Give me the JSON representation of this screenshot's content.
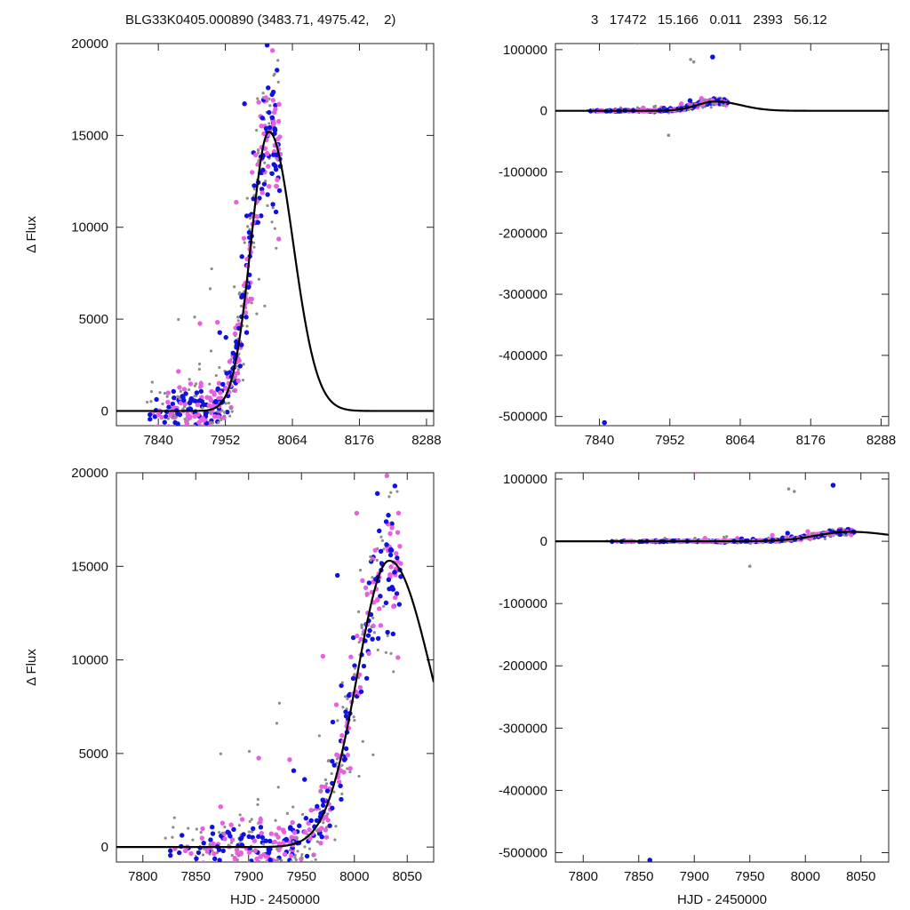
{
  "header": {
    "left": "BLG33K0405.000890 (3483.71, 4975.42,    2)",
    "right": "3   17472   15.166   0.011   2393   56.12"
  },
  "colors": {
    "blue": "#1010e0",
    "pink": "#e860e0",
    "gray": "#8c8c8c",
    "model": "#000000"
  },
  "chart_data": [
    {
      "type": "scatter",
      "panel": "top-left",
      "ylabel": "Δ Flux",
      "xlabel": "",
      "xlim": [
        7770,
        8300
      ],
      "ylim": [
        -800,
        20000
      ],
      "xticks": [
        7840,
        7952,
        8064,
        8176,
        8288
      ],
      "yticks": [
        0,
        5000,
        10000,
        15000,
        20000
      ],
      "model": {
        "t0": 8025,
        "peak": 15200,
        "sigma_rise": 30,
        "sigma_fall": 40
      }
    },
    {
      "type": "scatter",
      "panel": "top-right",
      "ylabel": "",
      "xlabel": "",
      "xlim": [
        7770,
        8300
      ],
      "ylim": [
        -515000,
        110000
      ],
      "xticks": [
        7840,
        7952,
        8064,
        8176,
        8288
      ],
      "yticks": [
        -500000,
        -400000,
        -300000,
        -200000,
        -100000,
        0,
        100000
      ],
      "model": {
        "t0": 8025,
        "peak": 15200,
        "sigma_rise": 30,
        "sigma_fall": 40
      },
      "outliers": [
        {
          "x": 7848,
          "y": -510000,
          "color": "blue"
        },
        {
          "x": 7900,
          "y": 112000,
          "color": "pink"
        },
        {
          "x": 8020,
          "y": 88000,
          "color": "blue"
        },
        {
          "x": 7985,
          "y": 84000,
          "color": "gray"
        },
        {
          "x": 7990,
          "y": 80000,
          "color": "gray"
        },
        {
          "x": 7950,
          "y": -40000,
          "color": "gray"
        }
      ]
    },
    {
      "type": "scatter",
      "panel": "bottom-left",
      "ylabel": "Δ Flux",
      "xlabel": "HJD - 2450000",
      "xlim": [
        7775,
        8075
      ],
      "ylim": [
        -800,
        20000
      ],
      "xticks": [
        7800,
        7850,
        7900,
        7950,
        8000,
        8050
      ],
      "yticks": [
        0,
        5000,
        10000,
        15000,
        20000
      ],
      "model": {
        "t0": 8033,
        "peak": 15300,
        "sigma_rise": 30,
        "sigma_fall": 40
      }
    },
    {
      "type": "scatter",
      "panel": "bottom-right",
      "ylabel": "",
      "xlabel": "HJD - 2450000",
      "xlim": [
        7775,
        8075
      ],
      "ylim": [
        -515000,
        110000
      ],
      "xticks": [
        7800,
        7850,
        7900,
        7950,
        8000,
        8050
      ],
      "yticks": [
        -500000,
        -400000,
        -300000,
        -200000,
        -100000,
        0,
        100000
      ],
      "model": {
        "t0": 8040,
        "peak": 15200,
        "sigma_rise": 30,
        "sigma_fall": 40
      },
      "outliers": [
        {
          "x": 7860,
          "y": -512000,
          "color": "blue"
        },
        {
          "x": 7902,
          "y": 112000,
          "color": "pink"
        },
        {
          "x": 8025,
          "y": 90000,
          "color": "blue"
        },
        {
          "x": 7985,
          "y": 84000,
          "color": "gray"
        },
        {
          "x": 7990,
          "y": 80000,
          "color": "gray"
        },
        {
          "x": 7950,
          "y": -40000,
          "color": "gray"
        }
      ]
    }
  ]
}
